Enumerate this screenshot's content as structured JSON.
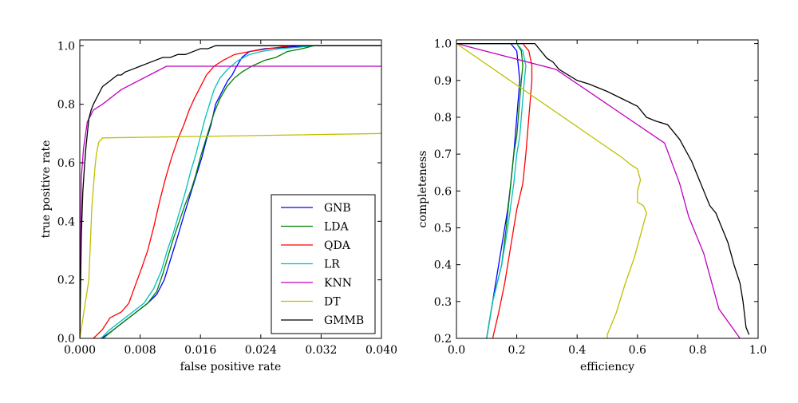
{
  "chart_data": [
    {
      "type": "line",
      "title": "",
      "xlabel": "false positive rate",
      "ylabel": "true positive rate",
      "xlim": [
        0.0,
        0.04
      ],
      "ylim": [
        0.0,
        1.02
      ],
      "xticks": [
        "0.000",
        "0.008",
        "0.016",
        "0.024",
        "0.032",
        "0.040"
      ],
      "yticks": [
        "0.0",
        "0.2",
        "0.4",
        "0.6",
        "0.8",
        "1.0"
      ],
      "grid": false,
      "legend": "lower-right",
      "series": [
        {
          "name": "GNB",
          "color": "#0000ff",
          "x": [
            0.0029,
            0.004,
            0.0055,
            0.007,
            0.009,
            0.0102,
            0.0112,
            0.0118,
            0.0124,
            0.013,
            0.0138,
            0.0144,
            0.015,
            0.0156,
            0.0162,
            0.0168,
            0.0174,
            0.018,
            0.019,
            0.0196,
            0.0202,
            0.0208,
            0.0215,
            0.0225,
            0.0245,
            0.0275,
            0.03,
            0.0318,
            0.04
          ],
          "y": [
            0.0,
            0.02,
            0.05,
            0.08,
            0.12,
            0.15,
            0.2,
            0.25,
            0.3,
            0.35,
            0.42,
            0.47,
            0.52,
            0.57,
            0.62,
            0.68,
            0.73,
            0.8,
            0.85,
            0.88,
            0.9,
            0.93,
            0.96,
            0.98,
            0.99,
            0.995,
            1.0,
            1.0,
            1.0
          ]
        },
        {
          "name": "LDA",
          "color": "#008000",
          "x": [
            0.0031,
            0.0045,
            0.006,
            0.0075,
            0.009,
            0.0102,
            0.011,
            0.0117,
            0.0124,
            0.0132,
            0.014,
            0.0148,
            0.0154,
            0.016,
            0.0166,
            0.0172,
            0.0178,
            0.0186,
            0.0195,
            0.0205,
            0.0215,
            0.0228,
            0.0245,
            0.026,
            0.0275,
            0.0295,
            0.031,
            0.04
          ],
          "y": [
            0.0,
            0.03,
            0.06,
            0.09,
            0.12,
            0.16,
            0.22,
            0.28,
            0.34,
            0.4,
            0.46,
            0.51,
            0.56,
            0.62,
            0.67,
            0.72,
            0.77,
            0.82,
            0.86,
            0.89,
            0.91,
            0.93,
            0.95,
            0.96,
            0.98,
            0.99,
            1.0,
            1.0
          ]
        },
        {
          "name": "QDA",
          "color": "#ff0000",
          "x": [
            0.0018,
            0.003,
            0.004,
            0.0055,
            0.0065,
            0.0072,
            0.0082,
            0.009,
            0.0098,
            0.0106,
            0.0114,
            0.0122,
            0.013,
            0.0138,
            0.0145,
            0.0152,
            0.016,
            0.0168,
            0.0178,
            0.019,
            0.0205,
            0.0225,
            0.025,
            0.028,
            0.04
          ],
          "y": [
            0.0,
            0.03,
            0.07,
            0.09,
            0.12,
            0.17,
            0.24,
            0.3,
            0.38,
            0.47,
            0.55,
            0.62,
            0.68,
            0.73,
            0.78,
            0.82,
            0.86,
            0.9,
            0.93,
            0.95,
            0.97,
            0.98,
            0.99,
            1.0,
            1.0
          ]
        },
        {
          "name": "LR",
          "color": "#00bfbf",
          "x": [
            0.0028,
            0.004,
            0.0055,
            0.007,
            0.0085,
            0.0098,
            0.0108,
            0.0116,
            0.0124,
            0.0132,
            0.014,
            0.0147,
            0.0154,
            0.016,
            0.0166,
            0.0172,
            0.0178,
            0.0186,
            0.0196,
            0.021,
            0.0225,
            0.024,
            0.0265,
            0.029,
            0.031,
            0.04
          ],
          "y": [
            0.0,
            0.03,
            0.06,
            0.09,
            0.12,
            0.17,
            0.23,
            0.3,
            0.36,
            0.43,
            0.5,
            0.57,
            0.63,
            0.69,
            0.75,
            0.8,
            0.85,
            0.89,
            0.92,
            0.95,
            0.97,
            0.98,
            0.99,
            0.995,
            1.0,
            1.0
          ]
        },
        {
          "name": "KNN",
          "color": "#bf00bf",
          "x": [
            0.0,
            0.0002,
            0.0005,
            0.001,
            0.0018,
            0.003,
            0.0055,
            0.0115,
            0.04
          ],
          "y": [
            0.0,
            0.55,
            0.65,
            0.74,
            0.78,
            0.8,
            0.85,
            0.93,
            0.93
          ]
        },
        {
          "name": "DT",
          "color": "#bfbf00",
          "x": [
            0.0,
            0.0012,
            0.0016,
            0.002,
            0.0022,
            0.0025,
            0.003,
            0.04
          ],
          "y": [
            0.0,
            0.2,
            0.45,
            0.58,
            0.63,
            0.67,
            0.685,
            0.7
          ]
        },
        {
          "name": "GMMB",
          "color": "#000000",
          "x": [
            0.0,
            0.0002,
            0.0004,
            0.0006,
            0.0008,
            0.001,
            0.0012,
            0.0015,
            0.0018,
            0.0022,
            0.0026,
            0.003,
            0.0035,
            0.004,
            0.0045,
            0.005,
            0.0055,
            0.006,
            0.007,
            0.008,
            0.009,
            0.01,
            0.011,
            0.012,
            0.013,
            0.014,
            0.015,
            0.016,
            0.017,
            0.018,
            0.019,
            0.02,
            0.04
          ],
          "y": [
            0.0,
            0.35,
            0.5,
            0.58,
            0.65,
            0.7,
            0.75,
            0.78,
            0.8,
            0.82,
            0.84,
            0.86,
            0.87,
            0.88,
            0.89,
            0.9,
            0.9,
            0.91,
            0.92,
            0.93,
            0.94,
            0.95,
            0.96,
            0.96,
            0.97,
            0.97,
            0.98,
            0.99,
            0.99,
            1.0,
            1.0,
            1.0,
            1.0
          ]
        }
      ]
    },
    {
      "type": "line",
      "title": "",
      "xlabel": "efficiency",
      "ylabel": "completeness",
      "xlim": [
        0.0,
        1.0
      ],
      "ylim": [
        0.2,
        1.01
      ],
      "xticks": [
        "0.0",
        "0.2",
        "0.4",
        "0.6",
        "0.8",
        "1.0"
      ],
      "yticks": [
        "0.2",
        "0.3",
        "0.4",
        "0.5",
        "0.6",
        "0.7",
        "0.8",
        "0.9",
        "1.0"
      ],
      "grid": false,
      "series": [
        {
          "name": "GNB",
          "color": "#0000ff",
          "x": [
            0.0,
            0.18,
            0.2,
            0.205,
            0.21,
            0.205,
            0.2,
            0.195,
            0.19,
            0.18,
            0.17,
            0.15,
            0.13,
            0.1
          ],
          "y": [
            1.0,
            1.0,
            0.98,
            0.94,
            0.9,
            0.85,
            0.8,
            0.75,
            0.7,
            0.62,
            0.55,
            0.45,
            0.35,
            0.2
          ]
        },
        {
          "name": "LDA",
          "color": "#008000",
          "x": [
            0.0,
            0.2,
            0.215,
            0.22,
            0.215,
            0.21,
            0.205,
            0.2,
            0.19,
            0.18,
            0.165,
            0.15,
            0.12,
            0.1
          ],
          "y": [
            1.0,
            1.0,
            0.98,
            0.94,
            0.9,
            0.85,
            0.8,
            0.75,
            0.7,
            0.62,
            0.5,
            0.4,
            0.3,
            0.2
          ]
        },
        {
          "name": "QDA",
          "color": "#ff0000",
          "x": [
            0.0,
            0.22,
            0.24,
            0.25,
            0.25,
            0.245,
            0.24,
            0.235,
            0.23,
            0.22,
            0.2,
            0.18,
            0.16,
            0.14,
            0.12
          ],
          "y": [
            1.0,
            1.0,
            0.98,
            0.94,
            0.9,
            0.85,
            0.8,
            0.75,
            0.7,
            0.62,
            0.55,
            0.45,
            0.35,
            0.27,
            0.2
          ]
        },
        {
          "name": "LR",
          "color": "#00bfbf",
          "x": [
            0.0,
            0.2,
            0.22,
            0.23,
            0.225,
            0.22,
            0.215,
            0.21,
            0.2,
            0.19,
            0.17,
            0.15,
            0.12,
            0.1
          ],
          "y": [
            1.0,
            1.0,
            0.98,
            0.94,
            0.9,
            0.85,
            0.8,
            0.75,
            0.7,
            0.62,
            0.5,
            0.4,
            0.3,
            0.2
          ]
        },
        {
          "name": "KNN",
          "color": "#bf00bf",
          "x": [
            0.0,
            0.33,
            0.69,
            0.74,
            0.77,
            0.82,
            0.87,
            0.94
          ],
          "y": [
            1.0,
            0.93,
            0.73,
            0.62,
            0.53,
            0.43,
            0.28,
            0.2
          ]
        },
        {
          "name": "DT",
          "color": "#bfbf00",
          "x": [
            0.0,
            0.55,
            0.58,
            0.6,
            0.61,
            0.6,
            0.6,
            0.62,
            0.63,
            0.61,
            0.59,
            0.56,
            0.53,
            0.5,
            0.5
          ],
          "y": [
            1.0,
            0.69,
            0.67,
            0.66,
            0.63,
            0.6,
            0.57,
            0.56,
            0.54,
            0.48,
            0.42,
            0.35,
            0.27,
            0.21,
            0.2
          ]
        },
        {
          "name": "GMMB",
          "color": "#000000",
          "x": [
            0.0,
            0.26,
            0.28,
            0.3,
            0.32,
            0.34,
            0.36,
            0.4,
            0.44,
            0.5,
            0.55,
            0.6,
            0.63,
            0.66,
            0.7,
            0.72,
            0.74,
            0.76,
            0.78,
            0.8,
            0.82,
            0.84,
            0.86,
            0.88,
            0.9,
            0.92,
            0.94,
            0.95,
            0.96,
            0.97
          ],
          "y": [
            1.0,
            1.0,
            0.98,
            0.96,
            0.95,
            0.93,
            0.92,
            0.9,
            0.89,
            0.87,
            0.85,
            0.83,
            0.8,
            0.79,
            0.78,
            0.76,
            0.74,
            0.71,
            0.68,
            0.64,
            0.6,
            0.56,
            0.54,
            0.5,
            0.46,
            0.4,
            0.35,
            0.3,
            0.23,
            0.21
          ]
        }
      ]
    }
  ]
}
